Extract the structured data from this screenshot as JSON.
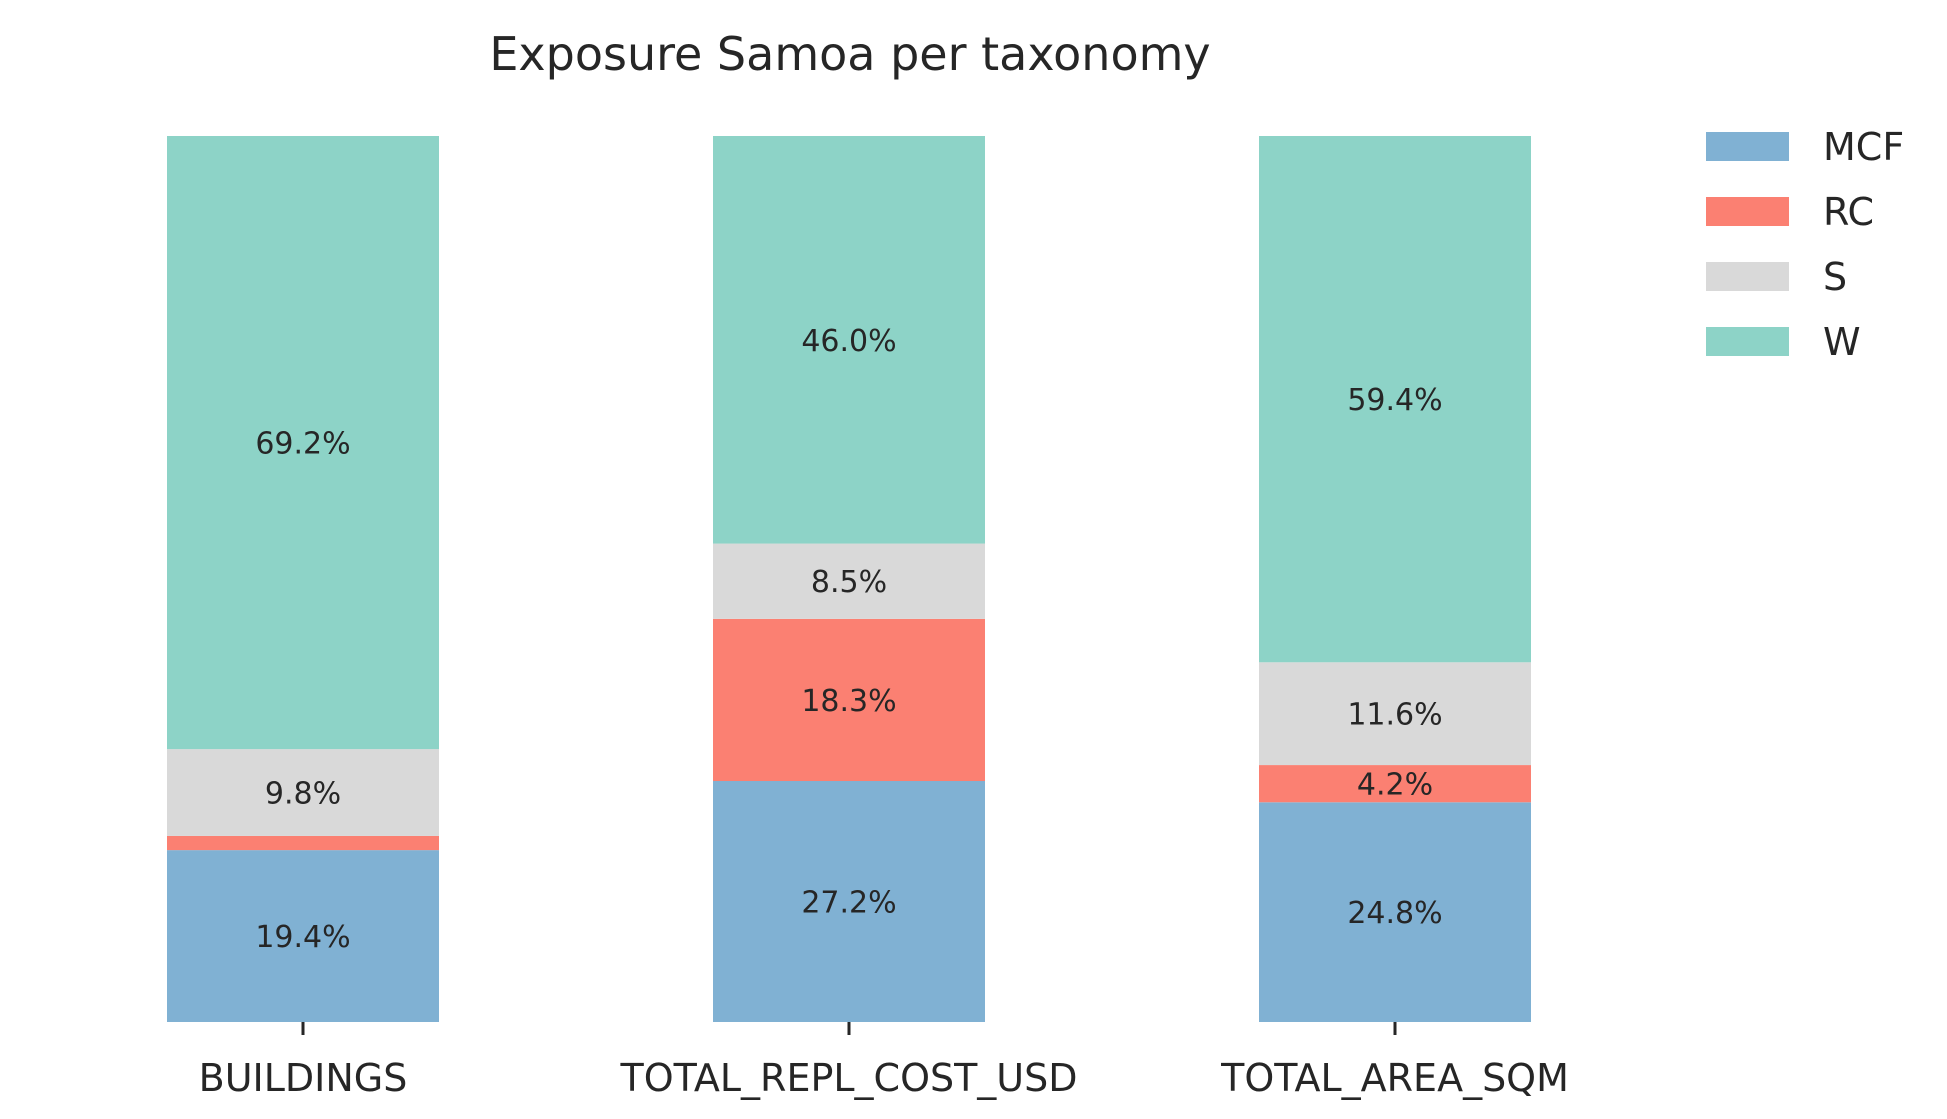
{
  "chart_data": {
    "type": "bar",
    "stacked": true,
    "title": "Exposure Samoa per taxonomy",
    "xlabel": "",
    "ylabel": "",
    "ylim": [
      0,
      100
    ],
    "grid": false,
    "legend_position": "top-right",
    "categories": [
      "BUILDINGS",
      "TOTAL_REPL_COST_USD",
      "TOTAL_AREA_SQM"
    ],
    "series": [
      {
        "name": "MCF",
        "color": "#80b1d3",
        "values": [
          19.4,
          27.2,
          24.8
        ],
        "labels": [
          "19.4%",
          "27.2%",
          "24.8%"
        ]
      },
      {
        "name": "RC",
        "color": "#fb8072",
        "values": [
          1.6,
          18.3,
          4.2
        ],
        "labels": [
          "",
          "18.3%",
          "4.2%"
        ]
      },
      {
        "name": "S",
        "color": "#d9d9d9",
        "values": [
          9.8,
          8.5,
          11.6
        ],
        "labels": [
          "9.8%",
          "8.5%",
          "11.6%"
        ]
      },
      {
        "name": "W",
        "color": "#8dd3c7",
        "values": [
          69.2,
          46.0,
          59.4
        ],
        "labels": [
          "69.2%",
          "46.0%",
          "59.4%"
        ]
      }
    ]
  }
}
